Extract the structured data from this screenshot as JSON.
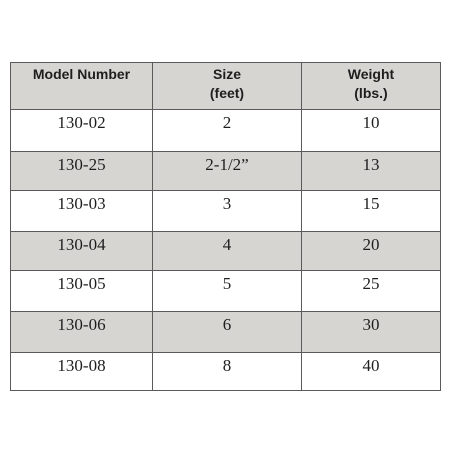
{
  "table": {
    "headers": [
      {
        "line1": "Model Number",
        "line2": ""
      },
      {
        "line1": "Size",
        "line2": "(feet)"
      },
      {
        "line1": "Weight",
        "line2": "(lbs.)"
      }
    ],
    "rows": [
      {
        "model": "130-02",
        "size": "2",
        "weight": "10"
      },
      {
        "model": "130-25",
        "size": "2-1/2”",
        "weight": "13"
      },
      {
        "model": "130-03",
        "size": "3",
        "weight": "15"
      },
      {
        "model": "130-04",
        "size": "4",
        "weight": "20"
      },
      {
        "model": "130-05",
        "size": "5",
        "weight": "25"
      },
      {
        "model": "130-06",
        "size": "6",
        "weight": "30"
      },
      {
        "model": "130-08",
        "size": "8",
        "weight": "40"
      }
    ],
    "colors": {
      "header_bg": "#d7d5d2",
      "shaded_row_bg": "#d7d5d2",
      "border": "#5a5a5a"
    }
  }
}
